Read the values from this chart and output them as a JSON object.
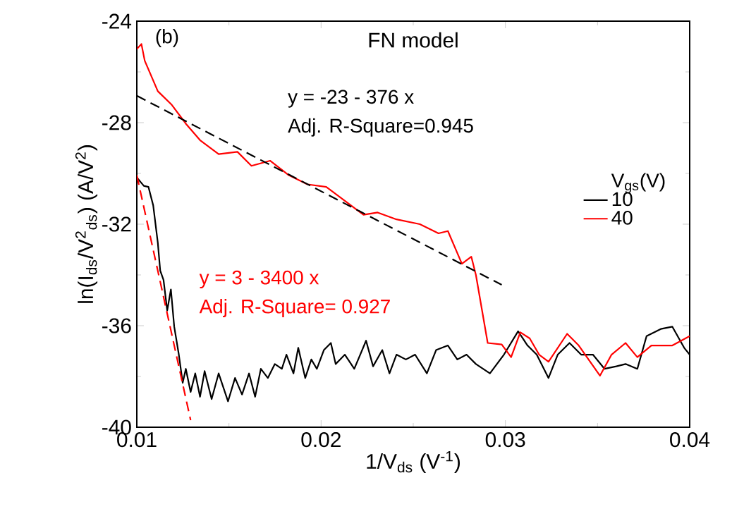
{
  "chart_data": {
    "type": "line",
    "title": "FN model",
    "xlabel": "1/V$_{ds}$ (V$^{-1}$)",
    "ylabel": "ln(I$_{ds}$/V$^{2}$$_{ds}$) (A/V$^{2}$)",
    "legend_title": "V$_{gs}$(V)",
    "annotations": [
      "(b)",
      "y = -23 - 376 x",
      "Adj. R-Square=0.945",
      "y = 3 - 3400 x",
      "Adj. R-Square= 0.927"
    ],
    "xlim": [
      0.01,
      0.04
    ],
    "ylim": [
      -40,
      -24
    ],
    "xticks": [
      0.01,
      0.02,
      0.03,
      0.04
    ],
    "yticks": [
      -40,
      -36,
      -32,
      -28,
      -24
    ],
    "legend": "right",
    "marker": "none",
    "line_style": "solid",
    "series": [
      {
        "name": "10",
        "color": "#000000",
        "x": [
          0.01,
          0.01038,
          0.01063,
          0.01089,
          0.01114,
          0.01127,
          0.01145,
          0.01165,
          0.01185,
          0.01203,
          0.01228,
          0.01249,
          0.01266,
          0.01292,
          0.01317,
          0.01343,
          0.01368,
          0.01406,
          0.01444,
          0.01495,
          0.01533,
          0.01571,
          0.01609,
          0.01642,
          0.01673,
          0.01711,
          0.01749,
          0.01787,
          0.01812,
          0.0185,
          0.01876,
          0.01914,
          0.01947,
          0.01977,
          0.02015,
          0.02053,
          0.02079,
          0.02129,
          0.0218,
          0.02244,
          0.02282,
          0.02332,
          0.02371,
          0.02409,
          0.0246,
          0.0251,
          0.02574,
          0.02624,
          0.02688,
          0.02739,
          0.02789,
          0.0284,
          0.02916,
          0.02992,
          0.03069,
          0.0312,
          0.0317,
          0.03234,
          0.03284,
          0.03348,
          0.03411,
          0.03475,
          0.03538,
          0.03602,
          0.03652,
          0.03716,
          0.03766,
          0.03843,
          0.03906,
          0.0397,
          0.04
        ],
        "values": [
          -30.16,
          -30.49,
          -30.53,
          -31.26,
          -32.73,
          -33.83,
          -34.2,
          -35.4,
          -34.57,
          -36.04,
          -37.14,
          -38.25,
          -37.7,
          -38.61,
          -37.88,
          -38.8,
          -37.79,
          -38.89,
          -37.88,
          -38.98,
          -38.06,
          -38.71,
          -37.88,
          -38.8,
          -37.7,
          -38.06,
          -37.51,
          -37.7,
          -37.14,
          -37.88,
          -36.87,
          -38.06,
          -37.33,
          -37.7,
          -36.96,
          -36.68,
          -37.51,
          -37.14,
          -37.7,
          -36.59,
          -37.6,
          -36.96,
          -37.88,
          -37.14,
          -37.33,
          -37.14,
          -37.88,
          -36.96,
          -36.78,
          -37.33,
          -37.14,
          -37.51,
          -37.88,
          -37.14,
          -36.22,
          -36.78,
          -37.14,
          -38.06,
          -37.14,
          -36.68,
          -37.14,
          -37.14,
          -37.7,
          -37.6,
          -37.51,
          -37.7,
          -36.41,
          -36.13,
          -36.04,
          -36.87,
          -37.14
        ]
      },
      {
        "name": "40",
        "color": "#ff0000",
        "x": [
          0.01,
          0.01025,
          0.01043,
          0.01114,
          0.0119,
          0.01266,
          0.01343,
          0.01444,
          0.01546,
          0.01622,
          0.01723,
          0.01825,
          0.01926,
          0.02028,
          0.02129,
          0.0223,
          0.02307,
          0.02409,
          0.02536,
          0.02637,
          0.02688,
          0.02764,
          0.02815,
          0.0284,
          0.02904,
          0.0298,
          0.03031,
          0.03081,
          0.03132,
          0.03183,
          0.03234,
          0.03335,
          0.03398,
          0.03513,
          0.03576,
          0.03652,
          0.03716,
          0.03792,
          0.03906,
          0.04
        ],
        "values": [
          -25.1,
          -24.9,
          -25.56,
          -26.76,
          -27.3,
          -28.04,
          -28.69,
          -29.24,
          -29.15,
          -29.7,
          -29.5,
          -30.07,
          -30.43,
          -30.53,
          -31.08,
          -31.63,
          -31.54,
          -31.81,
          -32.0,
          -32.36,
          -32.27,
          -33.56,
          -33.28,
          -34.0,
          -36.68,
          -36.74,
          -37.24,
          -36.26,
          -36.5,
          -37.14,
          -37.42,
          -36.32,
          -36.78,
          -37.97,
          -37.14,
          -36.68,
          -37.24,
          -36.78,
          -36.78,
          -36.41
        ]
      },
      {
        "type": "line",
        "line_style": "dashed",
        "color": "#000000",
        "x": [
          0.01,
          0.0298
        ],
        "values": [
          -26.94,
          -34.39
        ]
      },
      {
        "type": "line",
        "line_style": "dashed",
        "color": "#ff0000",
        "x": [
          0.01,
          0.01292
        ],
        "values": [
          -30.07,
          -39.72
        ]
      }
    ]
  }
}
